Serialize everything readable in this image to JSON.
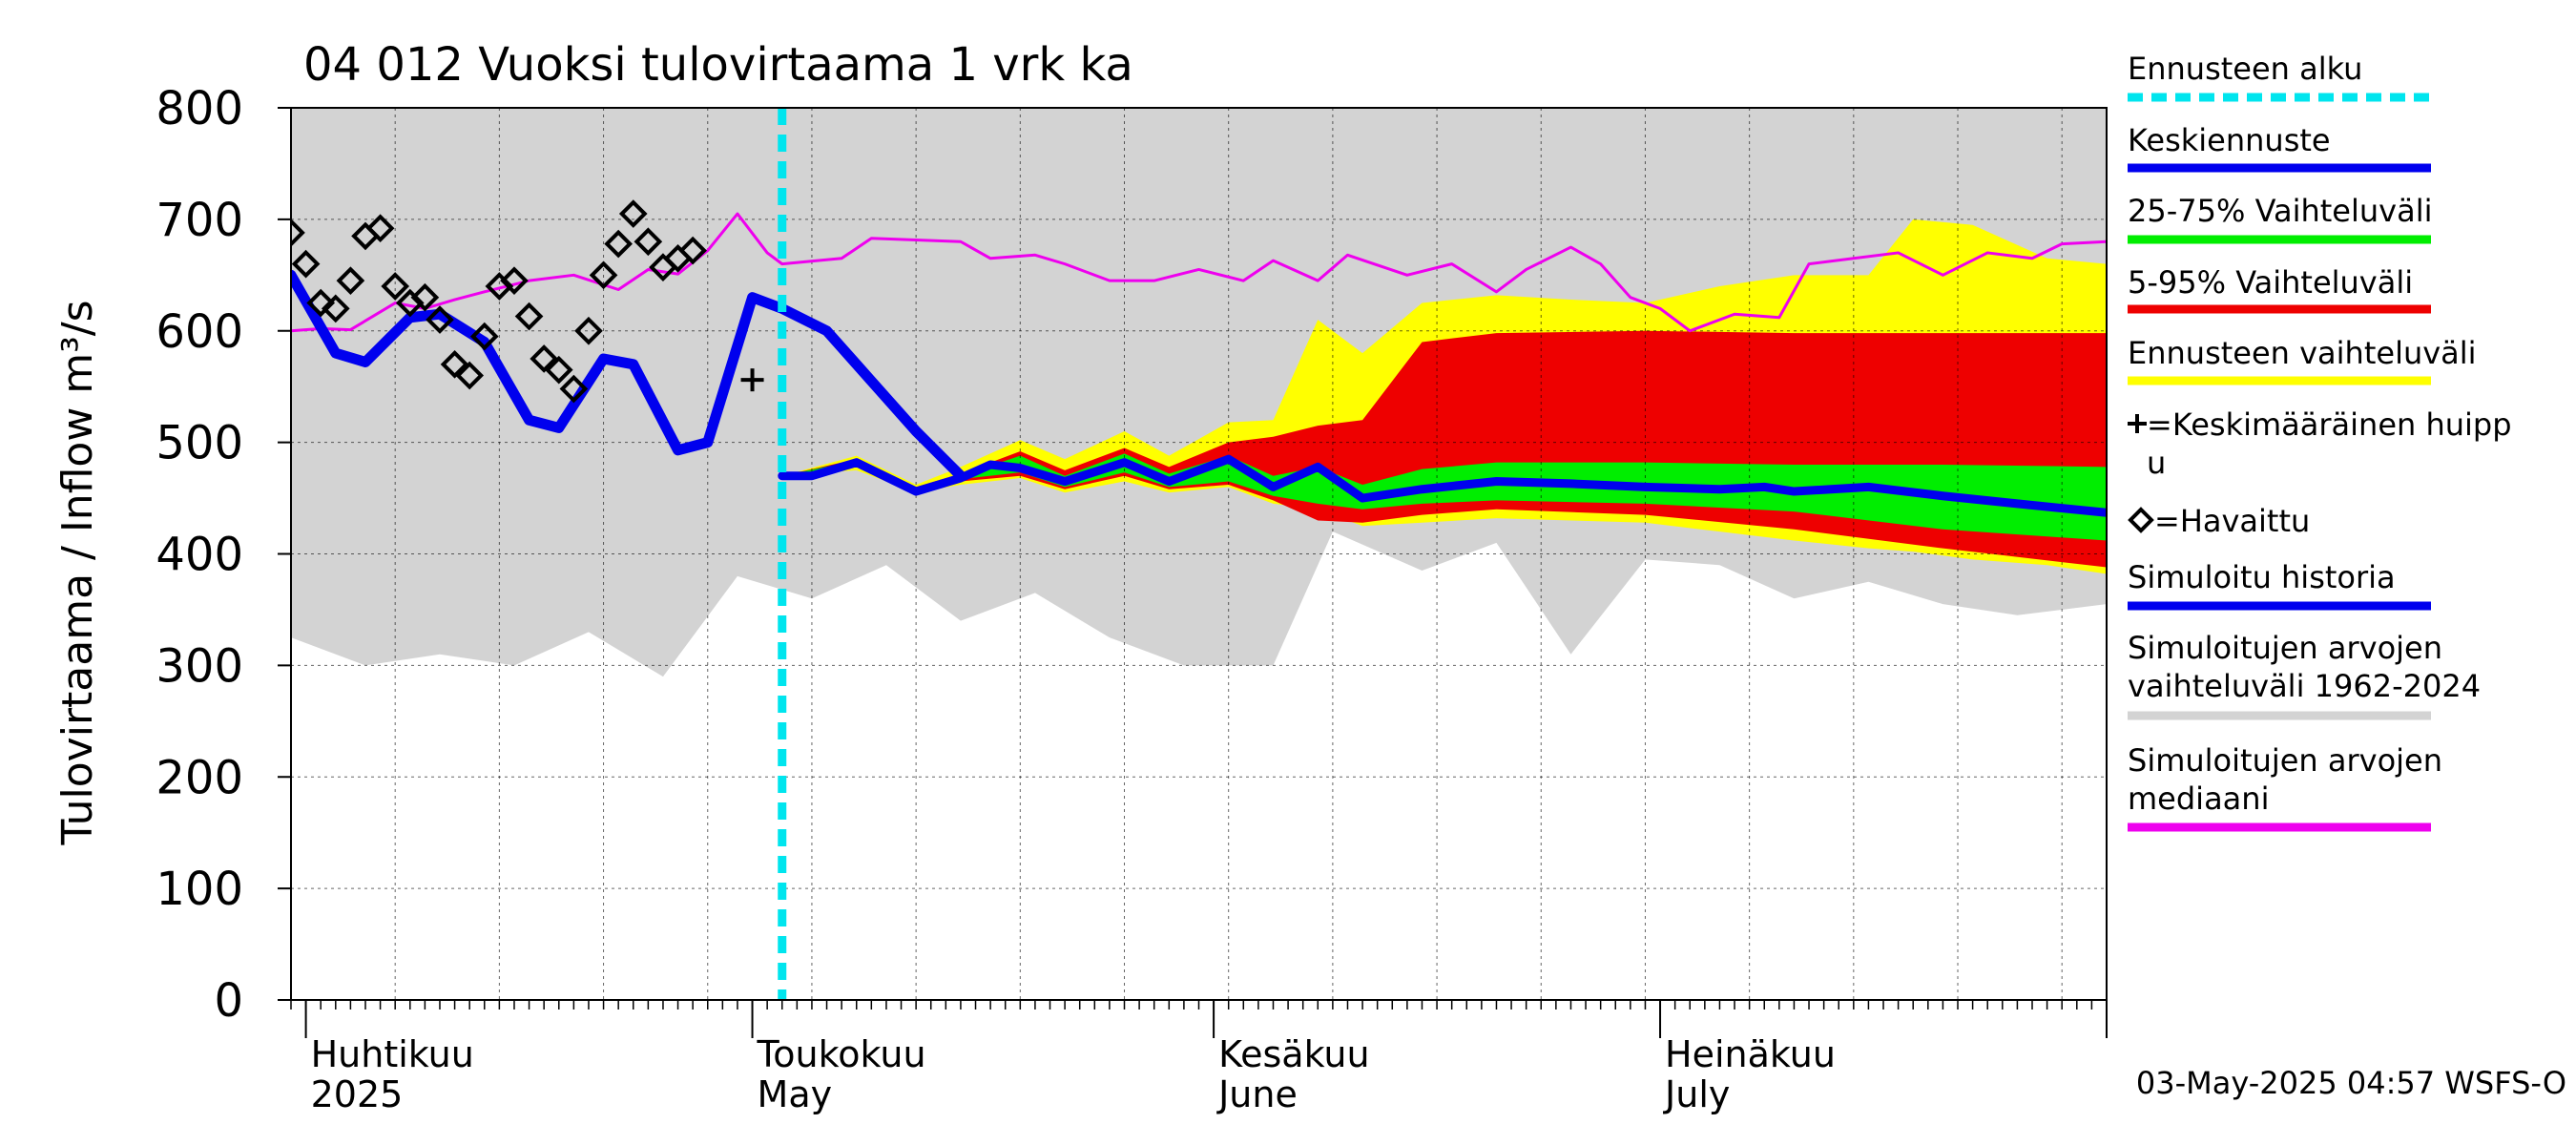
{
  "chart_data": {
    "type": "area",
    "title": "04 012 Vuoksi tulovirtaama 1 vrk ka",
    "ylabel": "Tulovirtaama / Inflow   m³/s",
    "ylim": [
      0,
      800
    ],
    "yticks": [
      0,
      100,
      200,
      300,
      400,
      500,
      600,
      700,
      800
    ],
    "xlim": [
      "2025-03-31",
      "2025-07-31"
    ],
    "month_labels": [
      {
        "date": "2025-04-01",
        "fi": "Huhtikuu",
        "en": "2025"
      },
      {
        "date": "2025-05-01",
        "fi": "Toukokuu",
        "en": "May"
      },
      {
        "date": "2025-06-01",
        "fi": "Kesäkuu",
        "en": "June"
      },
      {
        "date": "2025-07-01",
        "fi": "Heinäkuu",
        "en": "July"
      }
    ],
    "forecast_start": "2025-05-03",
    "legend": [
      {
        "key": "forecast_start",
        "label": "Ennusteen alku",
        "color": "#00e5ee",
        "style": "dashed"
      },
      {
        "key": "mean_forecast",
        "label": "Keskiennuste",
        "color": "#0000ee",
        "style": "line"
      },
      {
        "key": "band_25_75",
        "label": "25-75% Vaihteluväli",
        "color": "#00ee00",
        "style": "line"
      },
      {
        "key": "band_5_95",
        "label": "5-95% Vaihteluväli",
        "color": "#ee0000",
        "style": "line"
      },
      {
        "key": "band_full",
        "label": "Ennusteen vaihteluväli",
        "color": "#ffff00",
        "style": "line"
      },
      {
        "key": "mean_peak",
        "label": "=Keskimääräinen huipp u",
        "color": "#000000",
        "style": "plus"
      },
      {
        "key": "observed",
        "label": "=Havaittu",
        "color": "#000000",
        "style": "diamond"
      },
      {
        "key": "simulated_history",
        "label": "Simuloitu historia",
        "color": "#0000ee",
        "style": "line"
      },
      {
        "key": "hist_range",
        "label": "Simuloitujen arvojen vaihteluväli 1962-2024",
        "color": "#d3d3d3",
        "style": "line"
      },
      {
        "key": "hist_median",
        "label": "Simuloitujen arvojen mediaani",
        "color": "#ee00ee",
        "style": "line"
      }
    ],
    "series": {
      "hist_range": [
        [
          "2025-03-31",
          325,
          800
        ],
        [
          "2025-04-05",
          300,
          800
        ],
        [
          "2025-04-10",
          310,
          800
        ],
        [
          "2025-04-15",
          300,
          800
        ],
        [
          "2025-04-20",
          330,
          800
        ],
        [
          "2025-04-25",
          290,
          800
        ],
        [
          "2025-04-30",
          380,
          800
        ],
        [
          "2025-05-05",
          360,
          800
        ],
        [
          "2025-05-10",
          390,
          800
        ],
        [
          "2025-05-15",
          340,
          800
        ],
        [
          "2025-05-20",
          365,
          800
        ],
        [
          "2025-05-25",
          325,
          800
        ],
        [
          "2025-05-30",
          300,
          800
        ],
        [
          "2025-06-05",
          300,
          800
        ],
        [
          "2025-06-09",
          420,
          800
        ],
        [
          "2025-06-15",
          385,
          800
        ],
        [
          "2025-06-20",
          410,
          800
        ],
        [
          "2025-06-25",
          310,
          800
        ],
        [
          "2025-06-30",
          395,
          800
        ],
        [
          "2025-07-05",
          390,
          800
        ],
        [
          "2025-07-10",
          360,
          800
        ],
        [
          "2025-07-15",
          375,
          800
        ],
        [
          "2025-07-20",
          355,
          800
        ],
        [
          "2025-07-25",
          345,
          800
        ],
        [
          "2025-07-31",
          355,
          800
        ]
      ],
      "band_full": [
        [
          "2025-05-03",
          470,
          470
        ],
        [
          "2025-05-08",
          475,
          488
        ],
        [
          "2025-05-12",
          455,
          462
        ],
        [
          "2025-05-15",
          462,
          478
        ],
        [
          "2025-05-19",
          468,
          502
        ],
        [
          "2025-05-22",
          455,
          485
        ],
        [
          "2025-05-26",
          465,
          510
        ],
        [
          "2025-05-29",
          455,
          488
        ],
        [
          "2025-06-02",
          460,
          518
        ],
        [
          "2025-06-05",
          445,
          520
        ],
        [
          "2025-06-08",
          440,
          610
        ],
        [
          "2025-06-11",
          425,
          580
        ],
        [
          "2025-06-15",
          428,
          625
        ],
        [
          "2025-06-20",
          432,
          632
        ],
        [
          "2025-06-25",
          430,
          628
        ],
        [
          "2025-06-30",
          428,
          625
        ],
        [
          "2025-07-05",
          420,
          640
        ],
        [
          "2025-07-10",
          412,
          650
        ],
        [
          "2025-07-15",
          405,
          650
        ],
        [
          "2025-07-18",
          402,
          700
        ],
        [
          "2025-07-22",
          395,
          695
        ],
        [
          "2025-07-27",
          390,
          665
        ],
        [
          "2025-07-31",
          382,
          660
        ]
      ],
      "band_5_95": [
        [
          "2025-05-03",
          470,
          470
        ],
        [
          "2025-05-08",
          478,
          485
        ],
        [
          "2025-05-12",
          455,
          460
        ],
        [
          "2025-05-15",
          465,
          472
        ],
        [
          "2025-05-19",
          470,
          492
        ],
        [
          "2025-05-22",
          458,
          475
        ],
        [
          "2025-05-26",
          470,
          495
        ],
        [
          "2025-05-29",
          458,
          478
        ],
        [
          "2025-06-02",
          462,
          500
        ],
        [
          "2025-06-05",
          448,
          505
        ],
        [
          "2025-06-08",
          430,
          515
        ],
        [
          "2025-06-11",
          428,
          520
        ],
        [
          "2025-06-15",
          435,
          590
        ],
        [
          "2025-06-20",
          440,
          598
        ],
        [
          "2025-06-30",
          435,
          600
        ],
        [
          "2025-07-10",
          422,
          598
        ],
        [
          "2025-07-20",
          405,
          598
        ],
        [
          "2025-07-31",
          388,
          598
        ]
      ],
      "band_25_75": [
        [
          "2025-05-03",
          470,
          470
        ],
        [
          "2025-05-08",
          480,
          484
        ],
        [
          "2025-05-12",
          456,
          459
        ],
        [
          "2025-05-15",
          467,
          470
        ],
        [
          "2025-05-19",
          473,
          488
        ],
        [
          "2025-05-22",
          460,
          470
        ],
        [
          "2025-05-26",
          473,
          490
        ],
        [
          "2025-05-29",
          460,
          472
        ],
        [
          "2025-06-02",
          465,
          488
        ],
        [
          "2025-06-05",
          452,
          470
        ],
        [
          "2025-06-08",
          445,
          478
        ],
        [
          "2025-06-11",
          440,
          462
        ],
        [
          "2025-06-15",
          445,
          476
        ],
        [
          "2025-06-20",
          448,
          482
        ],
        [
          "2025-06-30",
          445,
          482
        ],
        [
          "2025-07-10",
          438,
          480
        ],
        [
          "2025-07-20",
          422,
          480
        ],
        [
          "2025-07-31",
          412,
          478
        ]
      ],
      "hist_median": [
        [
          "2025-03-31",
          600
        ],
        [
          "2025-04-02",
          602
        ],
        [
          "2025-04-04",
          601
        ],
        [
          "2025-04-07",
          625
        ],
        [
          "2025-04-09",
          620
        ],
        [
          "2025-04-11",
          628
        ],
        [
          "2025-04-13",
          635
        ],
        [
          "2025-04-16",
          645
        ],
        [
          "2025-04-19",
          650
        ],
        [
          "2025-04-22",
          637
        ],
        [
          "2025-04-24",
          655
        ],
        [
          "2025-04-26",
          651
        ],
        [
          "2025-04-28",
          672
        ],
        [
          "2025-04-30",
          705
        ],
        [
          "2025-05-02",
          670
        ],
        [
          "2025-05-03",
          660
        ],
        [
          "2025-05-07",
          665
        ],
        [
          "2025-05-09",
          683
        ],
        [
          "2025-05-15",
          680
        ],
        [
          "2025-05-17",
          665
        ],
        [
          "2025-05-20",
          668
        ],
        [
          "2025-05-22",
          660
        ],
        [
          "2025-05-25",
          645
        ],
        [
          "2025-05-28",
          645
        ],
        [
          "2025-05-31",
          655
        ],
        [
          "2025-06-03",
          645
        ],
        [
          "2025-06-05",
          663
        ],
        [
          "2025-06-08",
          645
        ],
        [
          "2025-06-10",
          668
        ],
        [
          "2025-06-14",
          650
        ],
        [
          "2025-06-17",
          660
        ],
        [
          "2025-06-20",
          635
        ],
        [
          "2025-06-22",
          655
        ],
        [
          "2025-06-25",
          675
        ],
        [
          "2025-06-27",
          660
        ],
        [
          "2025-06-29",
          630
        ],
        [
          "2025-07-01",
          620
        ],
        [
          "2025-07-03",
          600
        ],
        [
          "2025-07-06",
          615
        ],
        [
          "2025-07-09",
          612
        ],
        [
          "2025-07-11",
          660
        ],
        [
          "2025-07-14",
          665
        ],
        [
          "2025-07-17",
          670
        ],
        [
          "2025-07-20",
          650
        ],
        [
          "2025-07-23",
          670
        ],
        [
          "2025-07-26",
          665
        ],
        [
          "2025-07-28",
          678
        ],
        [
          "2025-07-31",
          680
        ]
      ],
      "simulated_history": [
        [
          "2025-03-31",
          650
        ],
        [
          "2025-04-03",
          580
        ],
        [
          "2025-04-05",
          572
        ],
        [
          "2025-04-08",
          612
        ],
        [
          "2025-04-10",
          615
        ],
        [
          "2025-04-13",
          590
        ],
        [
          "2025-04-16",
          520
        ],
        [
          "2025-04-18",
          513
        ],
        [
          "2025-04-21",
          575
        ],
        [
          "2025-04-23",
          570
        ],
        [
          "2025-04-26",
          493
        ],
        [
          "2025-04-28",
          500
        ],
        [
          "2025-05-01",
          630
        ],
        [
          "2025-05-03",
          620
        ],
        [
          "2025-05-06",
          600
        ],
        [
          "2025-05-09",
          555
        ],
        [
          "2025-05-12",
          510
        ],
        [
          "2025-05-15",
          470
        ]
      ],
      "mean_forecast": [
        [
          "2025-05-03",
          470
        ],
        [
          "2025-05-05",
          470
        ],
        [
          "2025-05-08",
          482
        ],
        [
          "2025-05-12",
          456
        ],
        [
          "2025-05-15",
          468
        ],
        [
          "2025-05-17",
          480
        ],
        [
          "2025-05-19",
          477
        ],
        [
          "2025-05-22",
          465
        ],
        [
          "2025-05-26",
          482
        ],
        [
          "2025-05-29",
          465
        ],
        [
          "2025-06-02",
          485
        ],
        [
          "2025-06-05",
          460
        ],
        [
          "2025-06-08",
          478
        ],
        [
          "2025-06-11",
          450
        ],
        [
          "2025-06-15",
          458
        ],
        [
          "2025-06-20",
          465
        ],
        [
          "2025-06-25",
          463
        ],
        [
          "2025-06-30",
          460
        ],
        [
          "2025-07-05",
          458
        ],
        [
          "2025-07-08",
          460
        ],
        [
          "2025-07-10",
          456
        ],
        [
          "2025-07-15",
          460
        ],
        [
          "2025-07-20",
          452
        ],
        [
          "2025-07-25",
          445
        ],
        [
          "2025-07-31",
          437
        ]
      ],
      "observed": [
        [
          "2025-03-31",
          688
        ],
        [
          "2025-04-01",
          660
        ],
        [
          "2025-04-02",
          625
        ],
        [
          "2025-04-03",
          620
        ],
        [
          "2025-04-04",
          645
        ],
        [
          "2025-04-05",
          685
        ],
        [
          "2025-04-06",
          692
        ],
        [
          "2025-04-07",
          640
        ],
        [
          "2025-04-08",
          625
        ],
        [
          "2025-04-09",
          630
        ],
        [
          "2025-04-10",
          610
        ],
        [
          "2025-04-11",
          570
        ],
        [
          "2025-04-12",
          560
        ],
        [
          "2025-04-13",
          595
        ],
        [
          "2025-04-14",
          640
        ],
        [
          "2025-04-15",
          645
        ],
        [
          "2025-04-16",
          613
        ],
        [
          "2025-04-17",
          575
        ],
        [
          "2025-04-18",
          565
        ],
        [
          "2025-04-19",
          548
        ],
        [
          "2025-04-20",
          600
        ],
        [
          "2025-04-21",
          650
        ],
        [
          "2025-04-22",
          678
        ],
        [
          "2025-04-23",
          705
        ],
        [
          "2025-04-24",
          680
        ],
        [
          "2025-04-25",
          657
        ],
        [
          "2025-04-26",
          665
        ],
        [
          "2025-04-27",
          672
        ]
      ],
      "mean_peak": [
        [
          "2025-05-01",
          556
        ]
      ]
    }
  },
  "footer": {
    "timestamp": "03-May-2025 04:57 WSFS-O"
  }
}
